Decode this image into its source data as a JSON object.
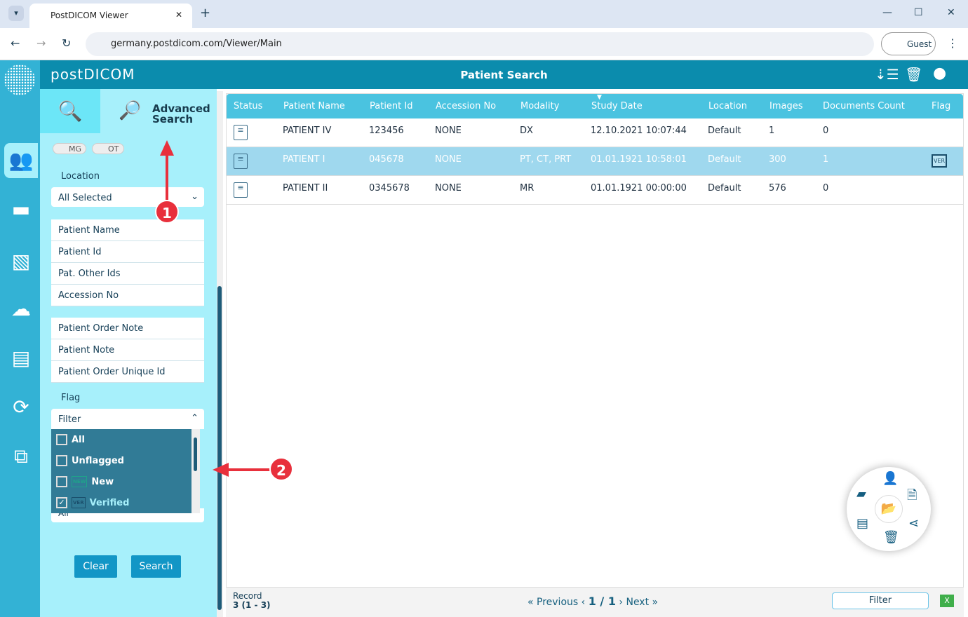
{
  "browser": {
    "tab_title": "PostDICOM Viewer",
    "url": "germany.postdicom.com/Viewer/Main",
    "profile": "Guest"
  },
  "app": {
    "logo": "postDICOM",
    "page_title": "Patient Search"
  },
  "sidebar": {
    "tab_advanced": "Advanced Search",
    "toggles": [
      "MG",
      "OT"
    ],
    "location_label": "Location",
    "location_value": "All Selected",
    "fields_group1": [
      "Patient Name",
      "Patient Id",
      "Pat. Other Ids",
      "Accession No"
    ],
    "fields_group2": [
      "Patient Order Note",
      "Patient Note",
      "Patient Order Unique Id"
    ],
    "flag_label": "Flag",
    "flag_filter_placeholder": "Filter",
    "flag_options": [
      {
        "label": "All",
        "checked": false
      },
      {
        "label": "Unflagged",
        "checked": false
      },
      {
        "label": "New",
        "badge": "NEW",
        "checked": false
      },
      {
        "label": "Verified",
        "badge": "VER",
        "checked": true
      }
    ],
    "hidden_value": "All",
    "clear_label": "Clear",
    "search_label": "Search"
  },
  "table": {
    "columns": [
      "Status",
      "Patient Name",
      "Patient Id",
      "Accession No",
      "Modality",
      "Study Date",
      "Location",
      "Images",
      "Documents Count",
      "Flag"
    ],
    "rows": [
      {
        "name": "PATIENT IV",
        "id": "123456",
        "acc": "NONE",
        "mod": "DX",
        "date": "12.10.2021 10:07:44",
        "loc": "Default",
        "images": "1",
        "docs": "0",
        "flag": ""
      },
      {
        "name": "PATIENT I",
        "id": "045678",
        "acc": "NONE",
        "mod": "PT, CT, PRT",
        "date": "01.01.1921 10:58:01",
        "loc": "Default",
        "images": "300",
        "docs": "1",
        "flag": "VER",
        "selected": true
      },
      {
        "name": "PATIENT II",
        "id": "0345678",
        "acc": "NONE",
        "mod": "MR",
        "date": "01.01.1921 00:00:00",
        "loc": "Default",
        "images": "576",
        "docs": "0",
        "flag": ""
      }
    ]
  },
  "footer": {
    "record_label": "Record",
    "record_value": "3 (1 - 3)",
    "previous": "Previous",
    "page": "1 / 1",
    "next": "Next",
    "filter": "Filter"
  },
  "annotations": [
    "1",
    "2"
  ],
  "colors": {
    "header": "#0b8cad",
    "sidebar": "#a7f0fb",
    "table_header": "#4ac3e0",
    "selected_row": "#9fd8ee",
    "annotation": "#e8303c"
  }
}
